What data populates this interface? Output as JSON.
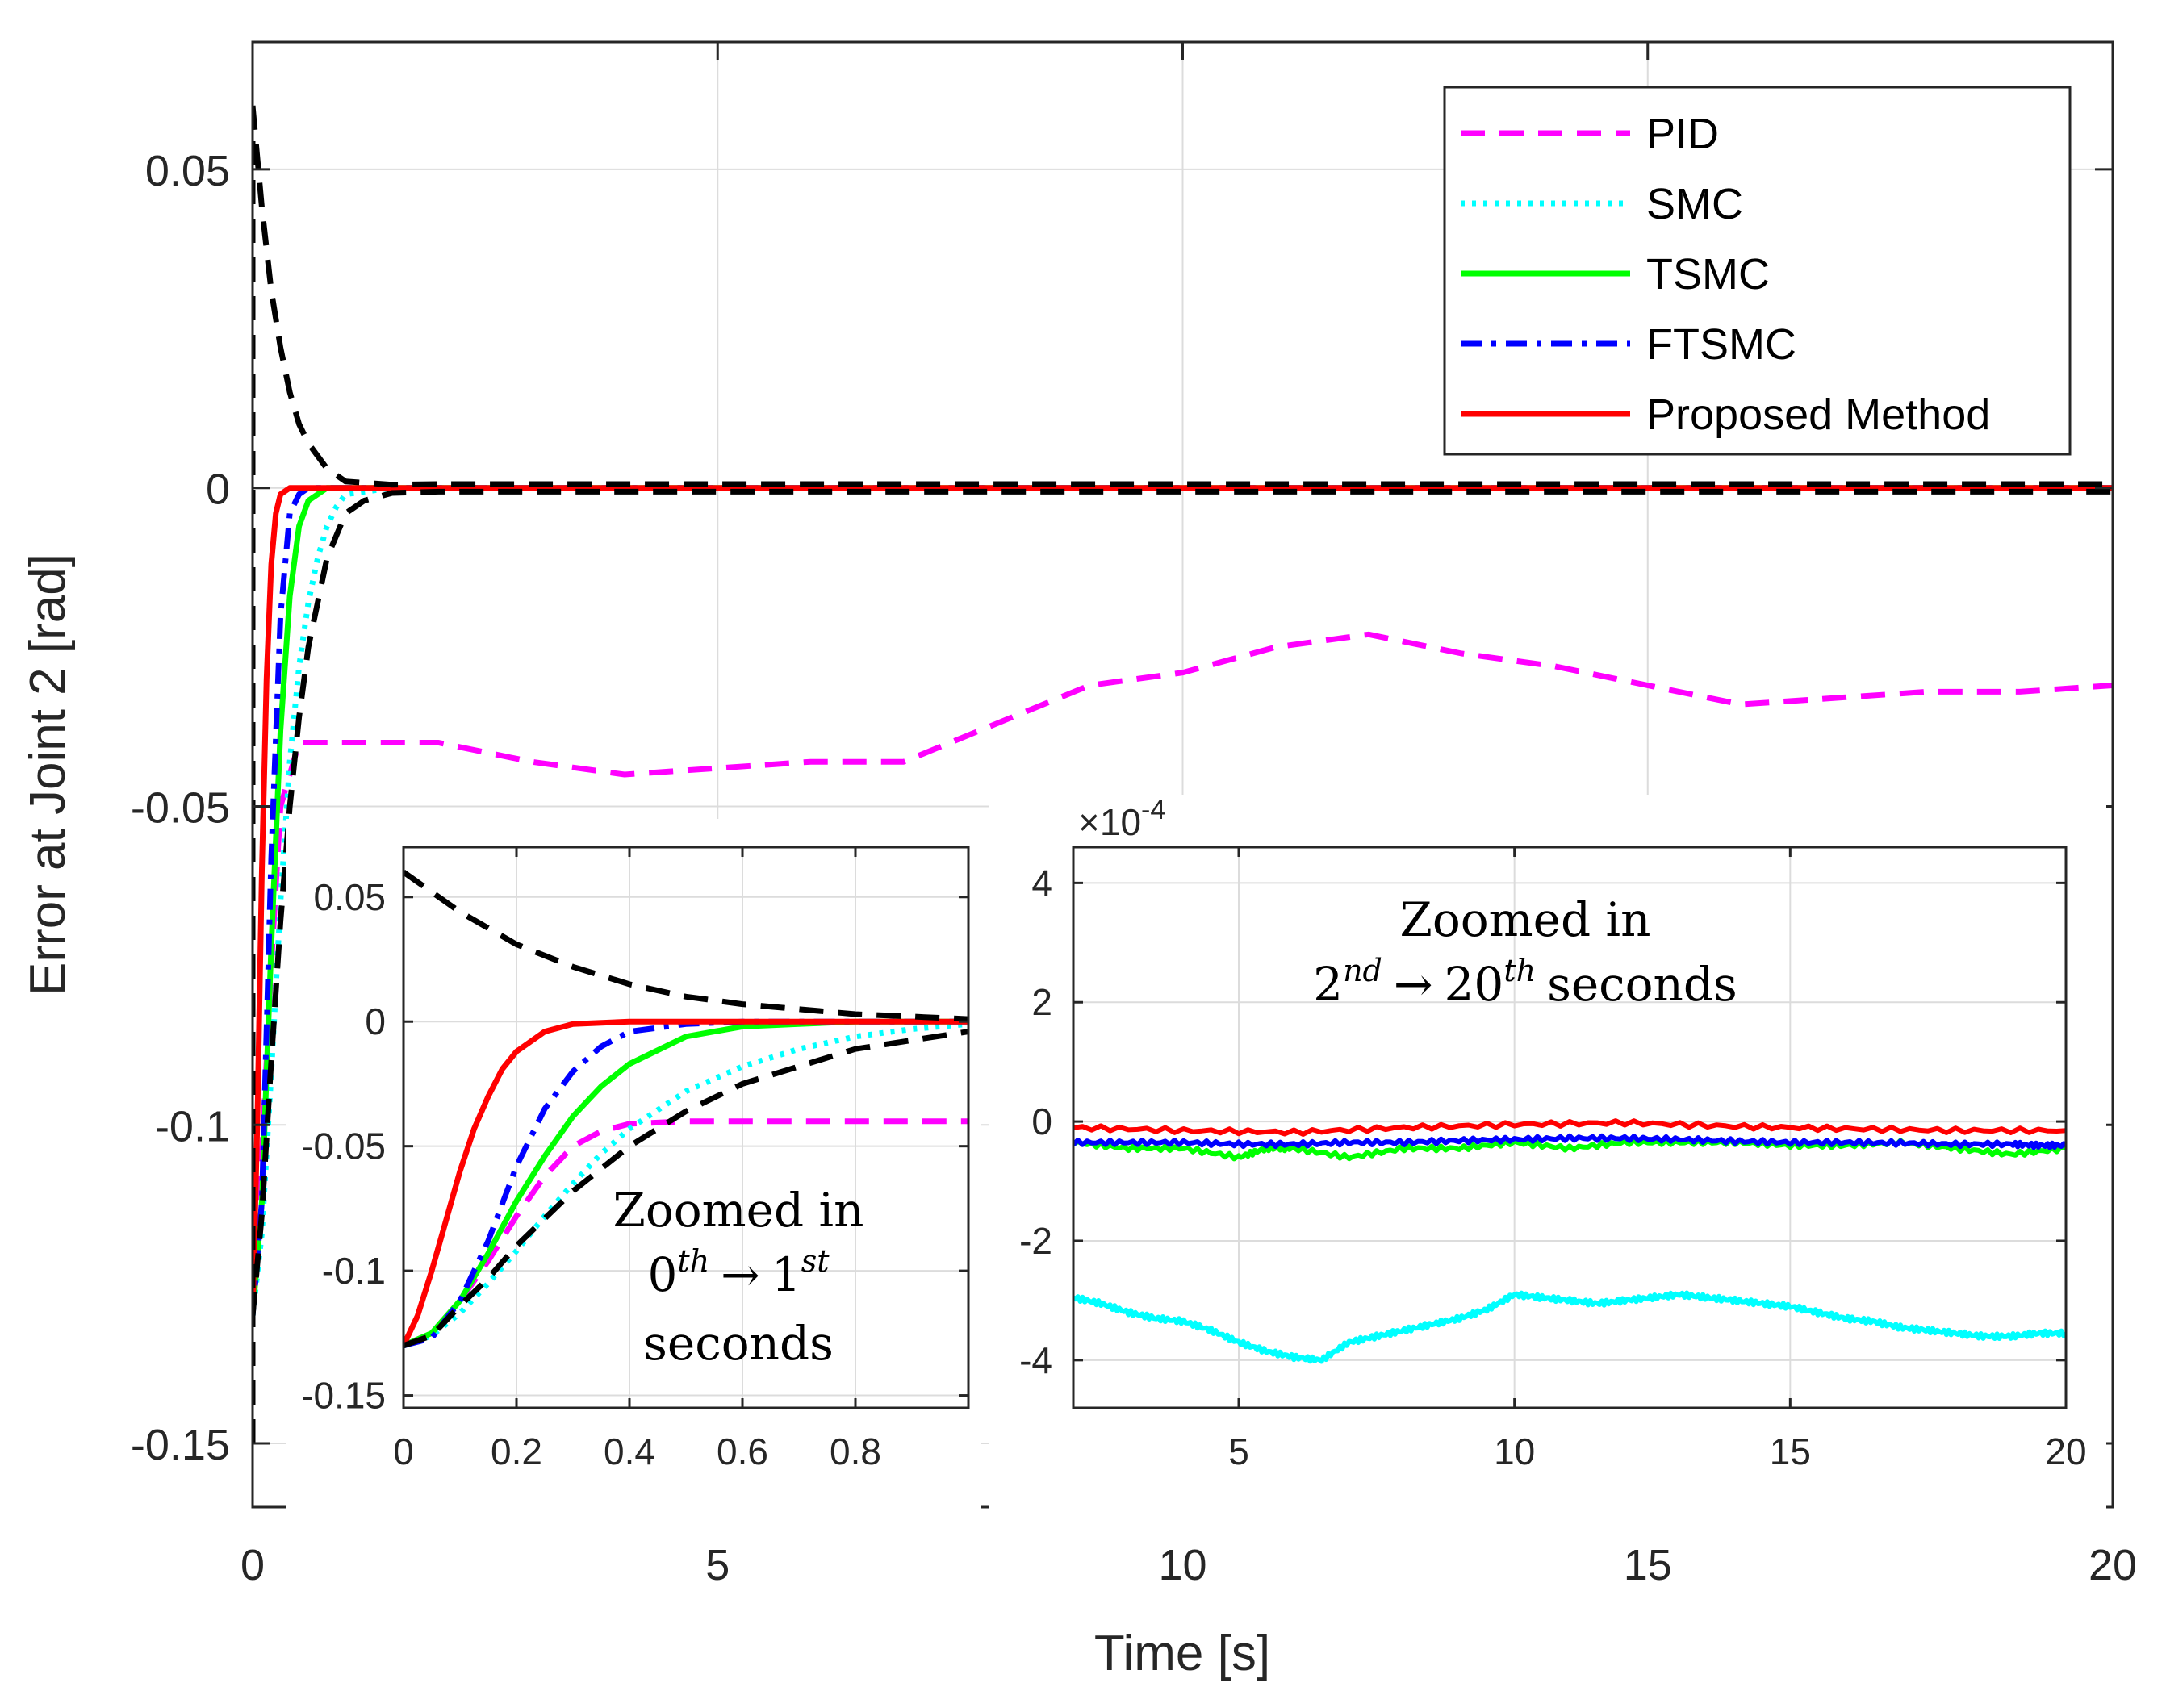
{
  "chart_data": [
    {
      "id": "main",
      "type": "line",
      "title": "",
      "xlabel": "Time [s]",
      "ylabel": "Error at Joint 2 [rad]",
      "xlim": [
        0,
        20
      ],
      "ylim": [
        -0.16,
        0.07
      ],
      "xticks": [
        0,
        5,
        10,
        15,
        20
      ],
      "xtick_labels": [
        "0",
        "5",
        "10",
        "15",
        "20"
      ],
      "yticks": [
        0.05,
        0,
        -0.05,
        -0.1,
        -0.15
      ],
      "ytick_labels": [
        "0.05",
        "0",
        "-0.05",
        "-0.1",
        "-0.15"
      ],
      "grid": true,
      "legend_position": "top-right",
      "series": [
        {
          "name": "PID",
          "color": "#ff00ff",
          "style": "dashed",
          "x": [
            0,
            0.1,
            0.2,
            0.3,
            0.5,
            1,
            2,
            3,
            4,
            5,
            6,
            7,
            8,
            9,
            10,
            11,
            12,
            13,
            14,
            15,
            16,
            17,
            18,
            19,
            20
          ],
          "y": [
            -0.13,
            -0.105,
            -0.075,
            -0.05,
            -0.04,
            -0.04,
            -0.04,
            -0.043,
            -0.045,
            -0.044,
            -0.043,
            -0.043,
            -0.037,
            -0.031,
            -0.029,
            -0.025,
            -0.023,
            -0.026,
            -0.028,
            -0.031,
            -0.034,
            -0.033,
            -0.032,
            -0.032,
            -0.031
          ]
        },
        {
          "name": "SMC",
          "color": "#00ffff",
          "style": "dotted",
          "x": [
            0,
            0.1,
            0.2,
            0.3,
            0.4,
            0.5,
            0.6,
            0.7,
            0.8,
            0.9,
            1.0,
            1.5,
            20
          ],
          "y": [
            -0.13,
            -0.117,
            -0.092,
            -0.065,
            -0.043,
            -0.028,
            -0.018,
            -0.011,
            -0.006,
            -0.003,
            -0.001,
            0,
            0
          ]
        },
        {
          "name": "TSMC",
          "color": "#00ff00",
          "style": "solid",
          "x": [
            0,
            0.1,
            0.2,
            0.3,
            0.4,
            0.5,
            0.6,
            0.7,
            0.8,
            1.0,
            20
          ],
          "y": [
            -0.13,
            -0.112,
            -0.072,
            -0.038,
            -0.017,
            -0.006,
            -0.002,
            -0.001,
            0,
            0,
            0
          ]
        },
        {
          "name": "FTSMC",
          "color": "#0000ff",
          "style": "dashdot",
          "x": [
            0,
            0.1,
            0.2,
            0.3,
            0.4,
            0.5,
            0.6,
            20
          ],
          "y": [
            -0.13,
            -0.112,
            -0.058,
            -0.02,
            -0.004,
            -0.001,
            0,
            0
          ]
        },
        {
          "name": "Proposed Method",
          "color": "#ff0000",
          "style": "solid",
          "x": [
            0,
            0.05,
            0.1,
            0.15,
            0.2,
            0.25,
            0.3,
            0.4,
            20
          ],
          "y": [
            -0.13,
            -0.1,
            -0.06,
            -0.03,
            -0.012,
            -0.004,
            -0.001,
            0,
            0
          ]
        },
        {
          "name": "",
          "color": "#000000",
          "style": "dashed",
          "x": [
            0,
            0.1,
            0.2,
            0.3,
            0.4,
            0.5,
            0.6,
            0.8,
            1.0,
            1.5,
            2,
            20
          ],
          "y": [
            0.06,
            0.044,
            0.031,
            0.022,
            0.015,
            0.01,
            0.007,
            0.003,
            0.001,
            0.0005,
            0.0006,
            0.0006
          ]
        },
        {
          "name": "",
          "color": "#000000",
          "style": "dashed",
          "x": [
            0,
            0.1,
            0.2,
            0.3,
            0.4,
            0.5,
            0.6,
            0.8,
            1.0,
            1.2,
            1.5,
            2,
            20
          ],
          "y": [
            -0.13,
            -0.114,
            -0.09,
            -0.068,
            -0.05,
            -0.036,
            -0.025,
            -0.011,
            -0.004,
            -0.002,
            -0.0008,
            -0.0006,
            -0.0006
          ]
        },
        {
          "name": "",
          "color": "#000000",
          "style": "dashed",
          "x": [
            0,
            0,
            0,
            0
          ],
          "y": [
            -0.15,
            -0.13,
            0.05,
            0.06
          ]
        }
      ]
    },
    {
      "id": "inset-left",
      "type": "line",
      "annotation": [
        "Zoomed in",
        "0",
        "th",
        "→",
        "1",
        "st",
        "seconds"
      ],
      "xlim": [
        0,
        1
      ],
      "ylim": [
        -0.155,
        0.07
      ],
      "xticks": [
        0,
        0.2,
        0.4,
        0.6,
        0.8
      ],
      "xtick_labels": [
        "0",
        "0.2",
        "0.4",
        "0.6",
        "0.8"
      ],
      "yticks": [
        0.05,
        0,
        -0.05,
        -0.1,
        -0.15
      ],
      "ytick_labels": [
        "0.05",
        "0",
        "-0.05",
        "-0.1",
        "-0.15"
      ],
      "grid": true,
      "series": [
        {
          "name": "PID",
          "color": "#ff00ff",
          "style": "dashed",
          "x": [
            0,
            0.05,
            0.1,
            0.15,
            0.2,
            0.25,
            0.3,
            0.35,
            0.4,
            0.5,
            0.6,
            0.8,
            1.0
          ],
          "y": [
            -0.13,
            -0.125,
            -0.112,
            -0.096,
            -0.078,
            -0.062,
            -0.05,
            -0.044,
            -0.041,
            -0.04,
            -0.04,
            -0.04,
            -0.04
          ]
        },
        {
          "name": "SMC",
          "color": "#00ffff",
          "style": "dotted",
          "x": [
            0,
            0.05,
            0.1,
            0.15,
            0.2,
            0.25,
            0.3,
            0.35,
            0.4,
            0.5,
            0.6,
            0.7,
            0.8,
            0.9,
            1.0
          ],
          "y": [
            -0.13,
            -0.126,
            -0.117,
            -0.105,
            -0.092,
            -0.078,
            -0.065,
            -0.053,
            -0.043,
            -0.028,
            -0.018,
            -0.011,
            -0.006,
            -0.003,
            -0.001
          ]
        },
        {
          "name": "TSMC",
          "color": "#00ff00",
          "style": "solid",
          "x": [
            0,
            0.05,
            0.1,
            0.15,
            0.2,
            0.25,
            0.3,
            0.35,
            0.4,
            0.5,
            0.6,
            0.7,
            0.8,
            1.0
          ],
          "y": [
            -0.13,
            -0.125,
            -0.112,
            -0.093,
            -0.072,
            -0.054,
            -0.038,
            -0.026,
            -0.017,
            -0.006,
            -0.002,
            -0.001,
            0,
            0
          ]
        },
        {
          "name": "FTSMC",
          "color": "#0000ff",
          "style": "dashdot",
          "x": [
            0,
            0.05,
            0.1,
            0.15,
            0.2,
            0.25,
            0.3,
            0.35,
            0.4,
            0.5,
            0.6,
            1.0
          ],
          "y": [
            -0.13,
            -0.127,
            -0.112,
            -0.088,
            -0.058,
            -0.035,
            -0.02,
            -0.01,
            -0.004,
            -0.001,
            0,
            0
          ]
        },
        {
          "name": "Proposed Method",
          "color": "#ff0000",
          "style": "solid",
          "x": [
            0,
            0.025,
            0.05,
            0.075,
            0.1,
            0.125,
            0.15,
            0.175,
            0.2,
            0.25,
            0.3,
            0.4,
            1.0
          ],
          "y": [
            -0.13,
            -0.118,
            -0.1,
            -0.08,
            -0.06,
            -0.043,
            -0.03,
            -0.019,
            -0.012,
            -0.004,
            -0.001,
            0,
            0
          ]
        },
        {
          "name": "",
          "color": "#000000",
          "style": "dashed",
          "x": [
            0,
            0.1,
            0.2,
            0.3,
            0.4,
            0.5,
            0.6,
            0.7,
            0.8,
            0.9,
            1.0
          ],
          "y": [
            0.06,
            0.044,
            0.031,
            0.022,
            0.015,
            0.01,
            0.007,
            0.005,
            0.003,
            0.002,
            0.001
          ]
        },
        {
          "name": "",
          "color": "#000000",
          "style": "dashed",
          "x": [
            0,
            0.05,
            0.1,
            0.15,
            0.2,
            0.25,
            0.3,
            0.4,
            0.5,
            0.6,
            0.8,
            1.0
          ],
          "y": [
            -0.13,
            -0.126,
            -0.114,
            -0.103,
            -0.09,
            -0.079,
            -0.068,
            -0.05,
            -0.036,
            -0.025,
            -0.011,
            -0.004
          ]
        }
      ]
    },
    {
      "id": "inset-right",
      "type": "line",
      "annotation": [
        "Zoomed in",
        "2",
        "nd",
        "→",
        "20",
        "th",
        "seconds"
      ],
      "exponent_label": "×10",
      "exponent_power": "-4",
      "xlim": [
        2,
        20
      ],
      "ylim": [
        -4.8,
        4.6
      ],
      "xticks": [
        5,
        10,
        15,
        20
      ],
      "xtick_labels": [
        "5",
        "10",
        "15",
        "20"
      ],
      "yticks": [
        4,
        2,
        0,
        -2,
        -4
      ],
      "ytick_labels": [
        "4",
        "2",
        "0",
        "-2",
        "-4"
      ],
      "grid": true,
      "series": [
        {
          "name": "SMC",
          "color": "#00ffff",
          "style": "noisy",
          "x": [
            2,
            2.5,
            3,
            3.5,
            4,
            4.5,
            5,
            5.5,
            6,
            6.5,
            7,
            7.5,
            8,
            8.5,
            9,
            9.5,
            10,
            10.5,
            11,
            11.5,
            12,
            12.5,
            13,
            13.5,
            14,
            14.5,
            15,
            15.5,
            16,
            16.5,
            17,
            17.5,
            18,
            18.5,
            19,
            19.5,
            20
          ],
          "y": [
            -2.95,
            -3.05,
            -3.2,
            -3.3,
            -3.35,
            -3.5,
            -3.7,
            -3.85,
            -3.95,
            -4.0,
            -3.7,
            -3.6,
            -3.5,
            -3.4,
            -3.3,
            -3.15,
            -2.9,
            -2.95,
            -3.0,
            -3.05,
            -3.0,
            -2.95,
            -2.9,
            -2.95,
            -3.0,
            -3.05,
            -3.1,
            -3.2,
            -3.3,
            -3.35,
            -3.45,
            -3.5,
            -3.55,
            -3.6,
            -3.6,
            -3.55,
            -3.55
          ]
        },
        {
          "name": "TSMC",
          "color": "#00ff00",
          "style": "noisy",
          "x": [
            2,
            3,
            4,
            5,
            5.5,
            6,
            7,
            8,
            9,
            10,
            11,
            12,
            13,
            14,
            15,
            16,
            17,
            18,
            19,
            20
          ],
          "y": [
            -0.35,
            -0.45,
            -0.45,
            -0.6,
            -0.45,
            -0.45,
            -0.6,
            -0.45,
            -0.45,
            -0.35,
            -0.45,
            -0.35,
            -0.35,
            -0.35,
            -0.4,
            -0.4,
            -0.35,
            -0.45,
            -0.55,
            -0.45
          ]
        },
        {
          "name": "FTSMC",
          "color": "#0000ff",
          "style": "noisy",
          "x": [
            2,
            3,
            4,
            5,
            6,
            7,
            8,
            9,
            10,
            11,
            12,
            13,
            14,
            15,
            16,
            17,
            18,
            19,
            19.5,
            20
          ],
          "y": [
            -0.35,
            -0.35,
            -0.35,
            -0.38,
            -0.38,
            -0.35,
            -0.35,
            -0.32,
            -0.3,
            -0.28,
            -0.28,
            -0.3,
            -0.33,
            -0.35,
            -0.35,
            -0.36,
            -0.38,
            -0.38,
            -0.4,
            -0.4
          ]
        },
        {
          "name": "Proposed Method",
          "color": "#ff0000",
          "style": "noisy",
          "x": [
            2,
            4,
            6,
            8,
            10,
            12,
            14,
            16,
            18,
            20
          ],
          "y": [
            -0.1,
            -0.15,
            -0.18,
            -0.1,
            -0.05,
            -0.02,
            -0.08,
            -0.12,
            -0.15,
            -0.15
          ]
        }
      ]
    }
  ],
  "legend": {
    "items": [
      {
        "label": "PID",
        "color": "#ff00ff",
        "style": "dashed"
      },
      {
        "label": "SMC",
        "color": "#00ffff",
        "style": "dotted"
      },
      {
        "label": "TSMC",
        "color": "#00ff00",
        "style": "solid"
      },
      {
        "label": "FTSMC",
        "color": "#0000ff",
        "style": "dashdot"
      },
      {
        "label": "Proposed Method",
        "color": "#ff0000",
        "style": "solid"
      }
    ]
  }
}
